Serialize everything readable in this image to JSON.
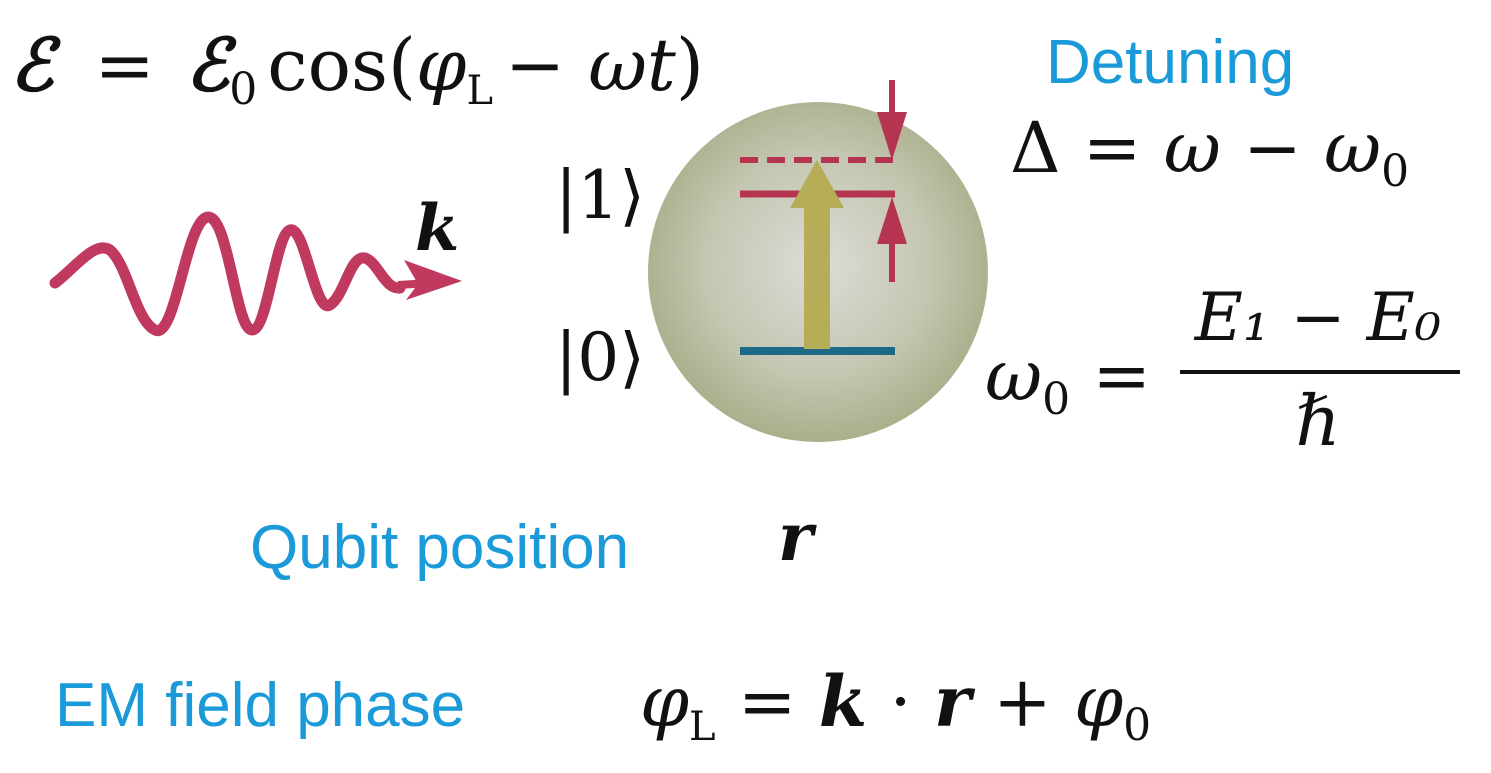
{
  "colors": {
    "label": "#1a9ad9",
    "wave": "#c0395f",
    "excited_level": "#b5344f",
    "ground_level": "#1c6a86",
    "transition_arrow": "#b5ad58",
    "sphere_center": "#d9d9d4",
    "sphere_edge": "#a9ae8a"
  },
  "labels": {
    "detuning": "Detuning",
    "qubit_position": "Qubit position",
    "em_field_phase": "EM field phase"
  },
  "states": {
    "excited": "|1⟩",
    "ground": "|0⟩"
  },
  "equations": {
    "field": "ℰ = ℰ₀ cos(φ_L − ωt)",
    "wavevector": "k",
    "detuning": "Δ = ω − ω₀",
    "frequency_numerator": "E₁ − E₀",
    "frequency_denominator": "ℏ",
    "position": "r",
    "phase": "φ_L = k · r + φ₀"
  }
}
